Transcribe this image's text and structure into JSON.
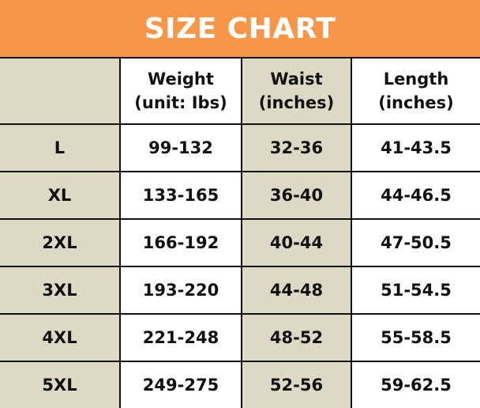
{
  "title": "SIZE CHART",
  "colors": {
    "banner": "#f79646",
    "beige": "#ddd9c4"
  },
  "headers": [
    {
      "line1": "",
      "line2": ""
    },
    {
      "line1": "Weight",
      "line2": "(unit: Ibs)"
    },
    {
      "line1": "Waist",
      "line2": "(inches)"
    },
    {
      "line1": "Length",
      "line2": "(inches)"
    }
  ],
  "rows": [
    {
      "size": "L",
      "weight": "99-132",
      "waist": "32-36",
      "length": "41-43.5"
    },
    {
      "size": "XL",
      "weight": "133-165",
      "waist": "36-40",
      "length": "44-46.5"
    },
    {
      "size": "2XL",
      "weight": "166-192",
      "waist": "40-44",
      "length": "47-50.5"
    },
    {
      "size": "3XL",
      "weight": "193-220",
      "waist": "44-48",
      "length": "51-54.5"
    },
    {
      "size": "4XL",
      "weight": "221-248",
      "waist": "48-52",
      "length": "55-58.5"
    },
    {
      "size": "5XL",
      "weight": "249-275",
      "waist": "52-56",
      "length": "59-62.5"
    }
  ]
}
